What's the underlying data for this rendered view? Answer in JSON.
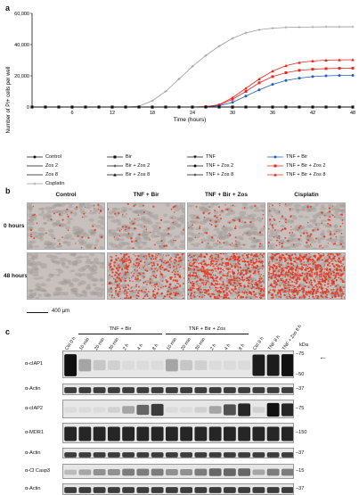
{
  "panels": {
    "a": "a",
    "b": "b",
    "c": "c"
  },
  "chart_data": {
    "type": "line",
    "title": "",
    "xlabel": "Time (hours)",
    "ylabel": "Number of PI+ cells per well",
    "xlim": [
      0,
      48
    ],
    "ylim": [
      0,
      60000
    ],
    "xticks": [
      "6",
      "12",
      "18",
      "24",
      "30",
      "36",
      "42",
      "48"
    ],
    "yticks": [
      "0",
      "20,000",
      "40,000",
      "60,000"
    ],
    "x": [
      0,
      2,
      4,
      6,
      8,
      10,
      12,
      14,
      16,
      18,
      20,
      22,
      24,
      26,
      28,
      30,
      32,
      34,
      36,
      38,
      40,
      42,
      44,
      46,
      48
    ],
    "series": [
      {
        "name": "Cisplatin",
        "color": "#9a9a9a",
        "marker": "plus",
        "values": [
          0,
          0,
          0,
          0,
          0,
          0,
          0,
          0,
          500,
          4000,
          10000,
          18000,
          26000,
          33000,
          39000,
          44000,
          47500,
          49500,
          50500,
          51000,
          51200,
          51300,
          51400,
          51400,
          51400
        ]
      },
      {
        "name": "TNF + Bir + Zos 8",
        "color": "#e8281e",
        "marker": "triangle",
        "values": [
          0,
          0,
          0,
          0,
          0,
          0,
          0,
          0,
          0,
          0,
          0,
          0,
          0,
          300,
          1500,
          6000,
          12000,
          18000,
          23000,
          26500,
          28500,
          29500,
          30000,
          30200,
          30300
        ]
      },
      {
        "name": "TNF + Bir + Zos 2",
        "color": "#e8281e",
        "marker": "square",
        "values": [
          0,
          0,
          0,
          0,
          0,
          0,
          0,
          0,
          0,
          0,
          0,
          0,
          0,
          200,
          1200,
          5000,
          10000,
          15500,
          19500,
          22000,
          23500,
          24200,
          24600,
          24800,
          24900
        ]
      },
      {
        "name": "TNF + Bir",
        "color": "#1f5fbf",
        "marker": "circle",
        "values": [
          0,
          0,
          0,
          0,
          0,
          0,
          0,
          0,
          0,
          0,
          0,
          0,
          0,
          100,
          800,
          3000,
          7000,
          11000,
          14500,
          17000,
          18500,
          19500,
          20000,
          20200,
          20300
        ]
      },
      {
        "name": "Control",
        "color": "#111111",
        "marker": "circle",
        "values": [
          0,
          0,
          0,
          0,
          0,
          0,
          0,
          0,
          0,
          0,
          0,
          0,
          0,
          0,
          0,
          0,
          0,
          0,
          0,
          0,
          0,
          0,
          0,
          0,
          0
        ]
      },
      {
        "name": "Bir",
        "color": "#111111",
        "marker": "square",
        "values": [
          0,
          0,
          0,
          0,
          0,
          0,
          0,
          0,
          0,
          0,
          0,
          0,
          0,
          0,
          0,
          0,
          0,
          0,
          0,
          0,
          0,
          0,
          0,
          0,
          0
        ]
      },
      {
        "name": "TNF",
        "color": "#111111",
        "marker": "triangle-down",
        "values": [
          0,
          0,
          0,
          0,
          0,
          0,
          0,
          0,
          0,
          0,
          0,
          0,
          0,
          0,
          0,
          0,
          0,
          0,
          0,
          0,
          0,
          0,
          0,
          0,
          0
        ]
      },
      {
        "name": "Zos 2",
        "color": "#111111",
        "marker": "none",
        "values": [
          0,
          0,
          0,
          0,
          0,
          0,
          0,
          0,
          0,
          0,
          0,
          0,
          0,
          0,
          0,
          0,
          0,
          0,
          0,
          0,
          0,
          0,
          0,
          0,
          0
        ]
      },
      {
        "name": "Bir + Zos 2",
        "color": "#111111",
        "marker": "plus",
        "values": [
          0,
          0,
          0,
          0,
          0,
          0,
          0,
          0,
          0,
          0,
          0,
          0,
          0,
          0,
          0,
          0,
          0,
          0,
          0,
          0,
          0,
          0,
          0,
          0,
          0
        ]
      },
      {
        "name": "TNF + Zos 2",
        "color": "#111111",
        "marker": "circle",
        "values": [
          0,
          0,
          0,
          0,
          0,
          0,
          0,
          0,
          0,
          0,
          0,
          0,
          0,
          0,
          0,
          0,
          0,
          0,
          0,
          0,
          0,
          0,
          0,
          0,
          0
        ]
      },
      {
        "name": "Zos 8",
        "color": "#111111",
        "marker": "none",
        "values": [
          0,
          0,
          0,
          0,
          0,
          0,
          0,
          0,
          0,
          0,
          0,
          0,
          0,
          0,
          0,
          0,
          0,
          0,
          0,
          0,
          0,
          0,
          0,
          0,
          0
        ]
      },
      {
        "name": "Bir + Zos 8",
        "color": "#111111",
        "marker": "triangle",
        "values": [
          0,
          0,
          0,
          0,
          0,
          0,
          0,
          0,
          0,
          0,
          0,
          0,
          0,
          0,
          0,
          0,
          0,
          0,
          0,
          0,
          0,
          0,
          0,
          0,
          0
        ]
      },
      {
        "name": "TNF + Zos 8",
        "color": "#111111",
        "marker": "plus",
        "values": [
          0,
          0,
          0,
          0,
          0,
          0,
          0,
          0,
          0,
          0,
          0,
          0,
          0,
          0,
          0,
          0,
          0,
          0,
          0,
          0,
          0,
          0,
          0,
          0,
          0
        ]
      }
    ],
    "legend_order": [
      "Control",
      "Bir",
      "TNF",
      "TNF + Bir",
      "Zos 2",
      "Bir + Zos 2",
      "TNF + Zos 2",
      "TNF + Bir + Zos 2",
      "Zos 8",
      "Bir + Zos 8",
      "TNF + Zos 8",
      "TNF + Bir + Zos 8",
      "Cisplatin"
    ]
  },
  "micrographs": {
    "columns": [
      "Control",
      "TNF + Bir",
      "TNF + Bir + Zos",
      "Cisplatin"
    ],
    "rows": [
      "0 hours",
      "48 hours"
    ],
    "scale_bar": "400 µm",
    "red_density_0h": [
      0.05,
      0.06,
      0.08,
      0.12
    ],
    "red_density_48h": [
      0.0,
      0.45,
      0.75,
      0.9
    ]
  },
  "blot": {
    "groups": [
      {
        "label": "TNF + Bir"
      },
      {
        "label": "TNF + Bir + Zos"
      }
    ],
    "lanes": [
      "Ctrl 0 h",
      "10 min",
      "20 min",
      "30 min",
      "2 h",
      "4 h",
      "8 h",
      "10 min",
      "20 min",
      "30 min",
      "2 h",
      "4 h",
      "8 h",
      "Ctrl 8 h",
      "TNF 8 h",
      "TNF + Zos 8 h"
    ],
    "kda_label": "kDa",
    "strips": [
      {
        "label": "α-cIAP1",
        "mw": [
          "–75",
          "–50"
        ],
        "bands": [
          1.0,
          0.3,
          0.15,
          0.1,
          0.05,
          0.05,
          0.05,
          0.3,
          0.15,
          0.1,
          0.05,
          0.05,
          0.05,
          0.95,
          0.95,
          1.0
        ]
      },
      {
        "label": "α-Actin",
        "mw": [
          "–37"
        ],
        "bands": [
          0.8,
          0.8,
          0.8,
          0.8,
          0.8,
          0.8,
          0.8,
          0.8,
          0.8,
          0.8,
          0.8,
          0.8,
          0.8,
          0.8,
          0.8,
          0.8
        ]
      },
      {
        "label": "α-cIAP2",
        "mw": [
          "–75"
        ],
        "bands": [
          0.05,
          0.05,
          0.05,
          0.1,
          0.3,
          0.6,
          0.8,
          0.05,
          0.05,
          0.1,
          0.3,
          0.7,
          0.9,
          0.1,
          1.0,
          0.9
        ]
      },
      {
        "label": "α-MDR1",
        "mw": [
          "–150"
        ],
        "bands": [
          0.9,
          0.9,
          0.9,
          0.9,
          0.9,
          0.9,
          0.9,
          0.9,
          0.9,
          0.9,
          0.9,
          0.9,
          0.9,
          0.9,
          0.9,
          0.9
        ]
      },
      {
        "label": "α-Actin",
        "mw": [
          "–37"
        ],
        "bands": [
          0.8,
          0.8,
          0.8,
          0.8,
          0.8,
          0.8,
          0.8,
          0.8,
          0.8,
          0.8,
          0.8,
          0.8,
          0.8,
          0.8,
          0.8,
          0.8
        ]
      },
      {
        "label": "α-Cl Casp3",
        "mw": [
          "–15"
        ],
        "bands": [
          0.2,
          0.3,
          0.4,
          0.4,
          0.5,
          0.5,
          0.5,
          0.4,
          0.4,
          0.5,
          0.6,
          0.6,
          0.6,
          0.3,
          0.5,
          0.5
        ]
      },
      {
        "label": "α-Actin",
        "mw": [
          "–37"
        ],
        "bands": [
          0.8,
          0.8,
          0.8,
          0.8,
          0.8,
          0.8,
          0.8,
          0.8,
          0.8,
          0.8,
          0.8,
          0.8,
          0.8,
          0.8,
          0.8,
          0.8
        ]
      }
    ]
  }
}
